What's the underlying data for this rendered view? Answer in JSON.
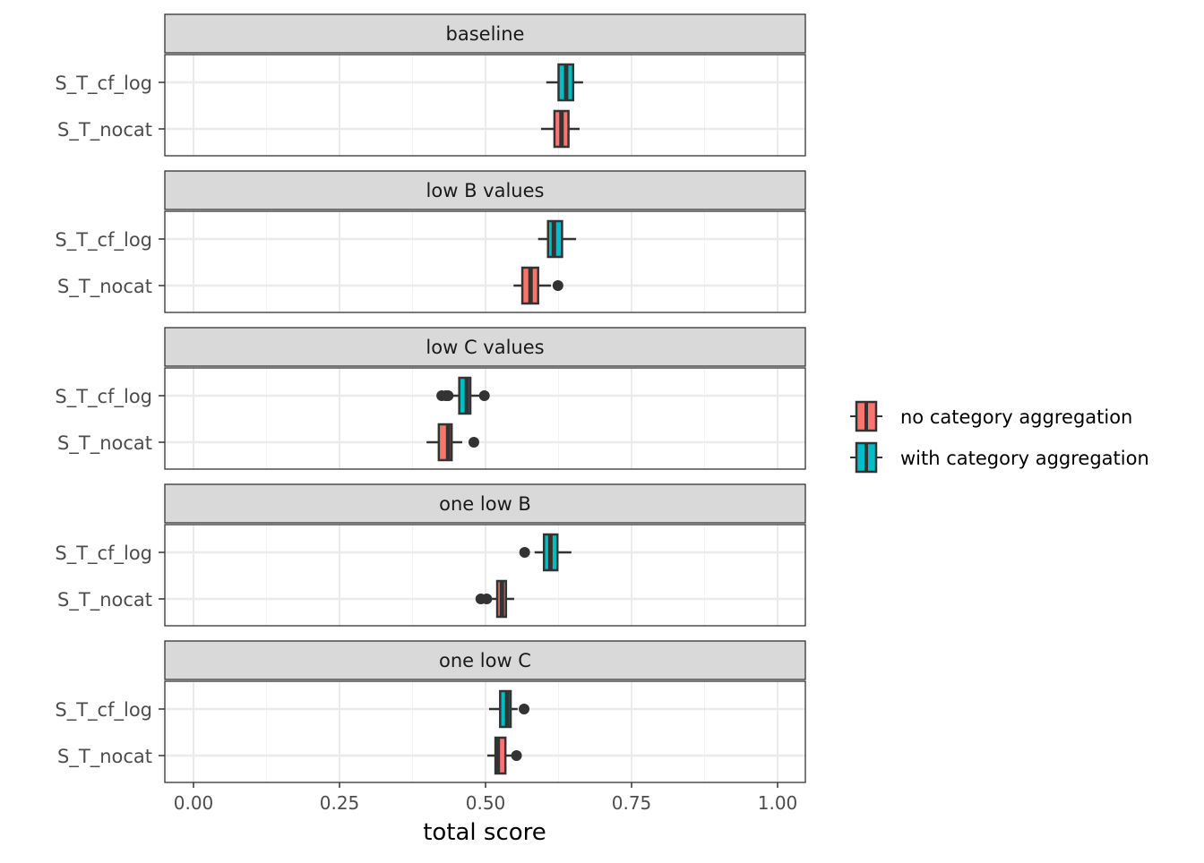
{
  "chart_data": {
    "type": "boxplot",
    "orientation": "horizontal",
    "xlabel": "total score",
    "ylabel": "",
    "xlim": [
      -0.05,
      1.05
    ],
    "x_ticks": [
      "0.00",
      "0.25",
      "0.50",
      "0.75",
      "1.00"
    ],
    "x_tick_values": [
      0,
      0.25,
      0.5,
      0.75,
      1.0
    ],
    "grid": true,
    "categories": [
      "S_T_cf_log",
      "S_T_nocat"
    ],
    "legend": {
      "position": "right",
      "entries": [
        {
          "label": "no category aggregation",
          "color": "#F8766D"
        },
        {
          "label": "with category aggregation",
          "color": "#00BFC4"
        }
      ]
    },
    "facets": [
      {
        "title": "baseline",
        "boxes": [
          {
            "category": "S_T_cf_log",
            "group": "with category aggregation",
            "min": 0.604,
            "q1": 0.625,
            "median": 0.638,
            "q3": 0.65,
            "max": 0.667,
            "outliers": []
          },
          {
            "category": "S_T_nocat",
            "group": "no category aggregation",
            "min": 0.595,
            "q1": 0.618,
            "median": 0.63,
            "q3": 0.642,
            "max": 0.661,
            "outliers": []
          }
        ]
      },
      {
        "title": "low B values",
        "boxes": [
          {
            "category": "S_T_cf_log",
            "group": "with category aggregation",
            "min": 0.59,
            "q1": 0.607,
            "median": 0.617,
            "q3": 0.631,
            "max": 0.655,
            "outliers": []
          },
          {
            "category": "S_T_nocat",
            "group": "no category aggregation",
            "min": 0.548,
            "q1": 0.563,
            "median": 0.577,
            "q3": 0.59,
            "max": 0.612,
            "outliers": [
              0.624
            ]
          }
        ]
      },
      {
        "title": "low C values",
        "boxes": [
          {
            "category": "S_T_cf_log",
            "group": "with category aggregation",
            "min": 0.444,
            "q1": 0.455,
            "median": 0.468,
            "q3": 0.474,
            "max": 0.49,
            "outliers": [
              0.425,
              0.432,
              0.436,
              0.498
            ]
          },
          {
            "category": "S_T_nocat",
            "group": "no category aggregation",
            "min": 0.399,
            "q1": 0.42,
            "median": 0.436,
            "q3": 0.442,
            "max": 0.46,
            "outliers": [
              0.48
            ]
          }
        ]
      },
      {
        "title": "one low B",
        "boxes": [
          {
            "category": "S_T_cf_log",
            "group": "with category aggregation",
            "min": 0.584,
            "q1": 0.6,
            "median": 0.611,
            "q3": 0.623,
            "max": 0.647,
            "outliers": [
              0.567
            ]
          },
          {
            "category": "S_T_nocat",
            "group": "no category aggregation",
            "min": 0.508,
            "q1": 0.52,
            "median": 0.528,
            "q3": 0.535,
            "max": 0.549,
            "outliers": [
              0.492,
              0.502
            ]
          }
        ]
      },
      {
        "title": "one low C",
        "boxes": [
          {
            "category": "S_T_cf_log",
            "group": "with category aggregation",
            "min": 0.506,
            "q1": 0.525,
            "median": 0.537,
            "q3": 0.543,
            "max": 0.555,
            "outliers": [
              0.566
            ]
          },
          {
            "category": "S_T_nocat",
            "group": "no category aggregation",
            "min": 0.503,
            "q1": 0.517,
            "median": 0.521,
            "q3": 0.534,
            "max": 0.545,
            "outliers": [
              0.553
            ]
          }
        ]
      }
    ]
  }
}
